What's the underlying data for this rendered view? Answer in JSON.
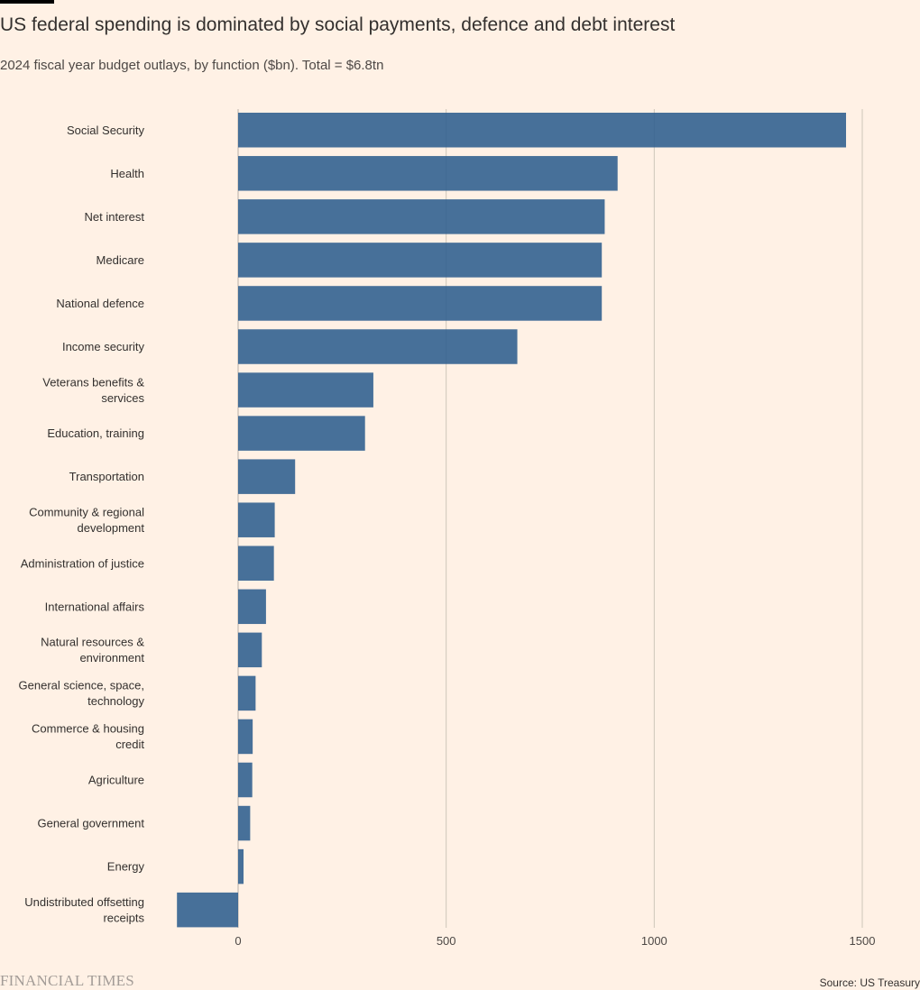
{
  "header": {
    "title": "US federal spending is dominated by social payments, defence and debt interest",
    "subtitle": "2024 fiscal year budget outlays, by function ($bn). Total = $6.8tn"
  },
  "footer": {
    "logo_text": "FINANCIAL TIMES",
    "source": "Source: US Treasury"
  },
  "colors": {
    "background": "#FFF1E5",
    "bar": "#2E5D8E",
    "gridline": "#CEC6B9",
    "text": "#33302E"
  },
  "chart_data": {
    "type": "bar",
    "orientation": "horizontal",
    "categories": [
      "Social Security",
      "Health",
      "Net interest",
      "Medicare",
      "National defence",
      "Income security",
      "Veterans benefits & services",
      "Education, training",
      "Transportation",
      "Community & regional development",
      "Administration of justice",
      "International affairs",
      "Natural resources & environment",
      "General science, space, technology",
      "Commerce & housing credit",
      "Agriculture",
      "General government",
      "Energy",
      "Undistributed offsetting receipts"
    ],
    "category_lines": [
      [
        "Social Security"
      ],
      [
        "Health"
      ],
      [
        "Net interest"
      ],
      [
        "Medicare"
      ],
      [
        "National defence"
      ],
      [
        "Income security"
      ],
      [
        "Veterans benefits &",
        "services"
      ],
      [
        "Education, training"
      ],
      [
        "Transportation"
      ],
      [
        "Community & regional",
        "development"
      ],
      [
        "Administration of justice"
      ],
      [
        "International affairs"
      ],
      [
        "Natural resources &",
        "environment"
      ],
      [
        "General science, space,",
        "technology"
      ],
      [
        "Commerce & housing",
        "credit"
      ],
      [
        "Agriculture"
      ],
      [
        "General government"
      ],
      [
        "Energy"
      ],
      [
        "Undistributed offsetting",
        "receipts"
      ]
    ],
    "values": [
      1461,
      912,
      881,
      874,
      874,
      671,
      325,
      305,
      137,
      88,
      86,
      67,
      57,
      42,
      35,
      34,
      29,
      13,
      -147
    ],
    "xlim": [
      -170,
      1570
    ],
    "xticks": [
      0,
      500,
      1000,
      1500
    ],
    "grid": true,
    "legend": "none"
  }
}
